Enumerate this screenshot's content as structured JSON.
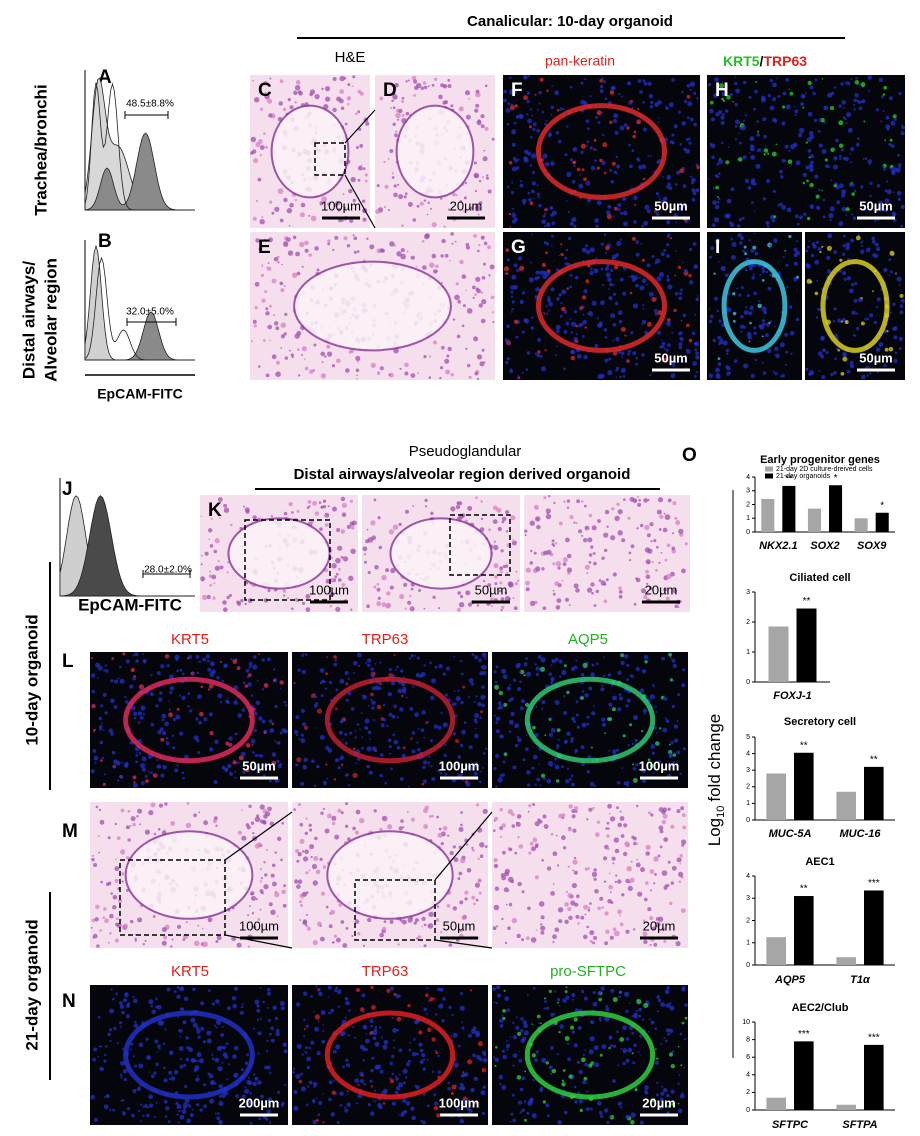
{
  "header": {
    "title": "Canalicular: 10-day organoid"
  },
  "side_labels": {
    "trachea": "Trachea/bronchi",
    "distal_1": "Distal airways/",
    "distal_2": "Alveolar region",
    "day10": "10-day organoid",
    "day21": "21-day organoid"
  },
  "flow": {
    "A": {
      "letter": "A",
      "stat": "48.5±8.8%"
    },
    "B": {
      "letter": "B",
      "stat": "32.0±5.0%"
    },
    "J": {
      "letter": "J",
      "stat": "28.0±2.0%"
    },
    "axis_label": "EpCAM-FITC"
  },
  "canalicular": {
    "he_label": "H&E",
    "pan_keratin": "pan-keratin",
    "krt5": "KRT5",
    "slash": "/",
    "trp63": "TRP63",
    "letters": {
      "C": "C",
      "D": "D",
      "E": "E",
      "F": "F",
      "G": "G",
      "H": "H",
      "I": "I"
    },
    "scales": {
      "C": "100µm",
      "D": "20µm",
      "F": "50µm",
      "H": "50µm",
      "G": "50µm",
      "I": "50µm"
    }
  },
  "pseudoglandular": {
    "title": "Pseudoglandular",
    "subtitle": "Distal airways/alveolar region derived organoid",
    "letter": "K",
    "scales": [
      "100µm",
      "50µm",
      "20µm"
    ]
  },
  "row_L": {
    "letter": "L",
    "stains": [
      "KRT5",
      "TRP63",
      "AQP5"
    ],
    "scales": [
      "50µm",
      "100µm",
      "100µm"
    ]
  },
  "row_M": {
    "letter": "M",
    "scales": [
      "100µm",
      "50µm",
      "20µm"
    ]
  },
  "row_N": {
    "letter": "N",
    "stains": [
      "KRT5",
      "TRP63",
      "pro-SFTPC"
    ],
    "scales": [
      "200µm",
      "100µm",
      "20µm"
    ]
  },
  "panel_O": {
    "letter": "O",
    "y_label": {
      "base": "Log",
      "sub": "10",
      "rest": "fold change"
    }
  },
  "chart_data": [
    {
      "type": "bar",
      "title": "Early progenitor genes",
      "categories": [
        "NKX2.1",
        "SOX2",
        "SOX9"
      ],
      "series": [
        {
          "name": "21-day 2D culture-dreived cells",
          "color": "#a6a6a6",
          "values": [
            2.4,
            1.7,
            1.0
          ]
        },
        {
          "name": "21-day organoids",
          "color": "#000000",
          "values": [
            3.35,
            3.4,
            1.4
          ]
        }
      ],
      "annotations": [
        "**",
        "*",
        "*"
      ],
      "ylim": [
        0,
        4
      ],
      "yticks": [
        0,
        1,
        2,
        3,
        4
      ],
      "legend": "upper left"
    },
    {
      "type": "bar",
      "title": "Ciliated cell",
      "categories": [
        "FOXJ-1"
      ],
      "series": [
        {
          "color": "#a6a6a6",
          "values": [
            1.85
          ]
        },
        {
          "color": "#000000",
          "values": [
            2.45
          ]
        }
      ],
      "annotations": [
        "**"
      ],
      "ylim": [
        0,
        3
      ],
      "yticks": [
        0,
        1,
        2,
        3
      ]
    },
    {
      "type": "bar",
      "title": "Secretory cell",
      "categories": [
        "MUC-5A",
        "MUC-16"
      ],
      "series": [
        {
          "color": "#a6a6a6",
          "values": [
            2.8,
            1.7
          ]
        },
        {
          "color": "#000000",
          "values": [
            4.05,
            3.2
          ]
        }
      ],
      "annotations": [
        "**",
        "**"
      ],
      "ylim": [
        0,
        5
      ],
      "yticks": [
        0,
        1,
        2,
        3,
        4,
        5
      ]
    },
    {
      "type": "bar",
      "title": "AEC1",
      "categories": [
        "AQP5",
        "T1α"
      ],
      "series": [
        {
          "color": "#a6a6a6",
          "values": [
            1.25,
            0.35
          ]
        },
        {
          "color": "#000000",
          "values": [
            3.1,
            3.35
          ]
        }
      ],
      "annotations": [
        "**",
        "***"
      ],
      "ylim": [
        0,
        4
      ],
      "yticks": [
        0,
        1,
        2,
        3,
        4
      ]
    },
    {
      "type": "bar",
      "title": "AEC2/Club",
      "categories": [
        "SFTPC",
        "SFTPA"
      ],
      "series": [
        {
          "color": "#a6a6a6",
          "values": [
            1.4,
            0.6
          ]
        },
        {
          "color": "#000000",
          "values": [
            7.8,
            7.4
          ]
        }
      ],
      "annotations": [
        "***",
        "***"
      ],
      "ylim": [
        0,
        10
      ],
      "yticks": [
        0,
        2,
        4,
        6,
        8,
        10
      ]
    }
  ]
}
